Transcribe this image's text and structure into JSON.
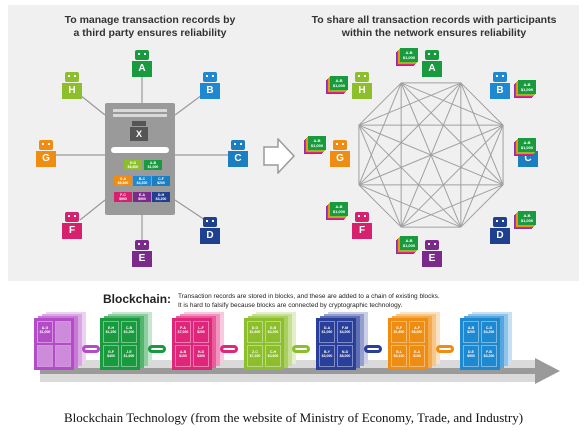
{
  "colors": {
    "A": "#1a9a3f",
    "B": "#1e88d1",
    "C": "#1a7fc1",
    "D": "#1f3f8f",
    "E": "#7a2a8a",
    "F": "#d6216f",
    "G": "#ef8c12",
    "H": "#8cbf2b",
    "bg": "#f0f0f0",
    "arrow": "#9a9a9a",
    "strip": "#f5d9e8"
  },
  "left": {
    "heading": "To manage transaction records by\na third party ensures reliability",
    "center_label": "X",
    "nodes": [
      "A",
      "B",
      "C",
      "D",
      "E",
      "F",
      "G",
      "H"
    ],
    "cells": [
      {
        "pair": "H-D",
        "amount": "$6,800",
        "color": "#8cbf2b"
      },
      {
        "pair": "A-B",
        "amount": "$1,000",
        "color": "#1a9a3f"
      },
      {
        "pair": "G-A",
        "amount": "$5,800",
        "color": "#ef8c12"
      },
      {
        "pair": "B-C",
        "amount": "$4,200",
        "color": "#1e88d1"
      },
      {
        "pair": "C-F",
        "amount": "$200",
        "color": "#1a7fc1"
      },
      {
        "pair": "F-C",
        "amount": "$900",
        "color": "#d6216f"
      },
      {
        "pair": "E-A",
        "amount": "$900",
        "color": "#7a2a8a"
      },
      {
        "pair": "D-H",
        "amount": "$3,200",
        "color": "#1f3f8f"
      }
    ]
  },
  "right": {
    "heading": "To share all transaction records with participants\nwithin the network ensures reliability",
    "nodes": [
      "A",
      "B",
      "C",
      "D",
      "E",
      "F",
      "G",
      "H"
    ],
    "ledger_pair": "A-B",
    "ledger_amount": "$1,000"
  },
  "blockchain": {
    "title": "Blockchain:",
    "desc_1": "Transaction records are stored in blocks, and these are added to a chain of existing blocks.",
    "desc_2": "It is hard to falsify because blocks are connected by cryptographic technology.",
    "blocks": [
      {
        "color": "#b44cc8",
        "cells": [
          [
            "A-G",
            "$1,000"
          ],
          [
            "",
            ""
          ],
          [
            "",
            ""
          ],
          [
            "",
            ""
          ]
        ]
      },
      {
        "color": "#1a9a3f",
        "cells": [
          [
            "E-H",
            "$1,200"
          ],
          [
            "C-B",
            "$2,200"
          ],
          [
            "G-F",
            "$400"
          ],
          [
            "J-E",
            "$1,600"
          ]
        ]
      },
      {
        "color": "#e0267a",
        "cells": [
          [
            "F-A",
            "$7,000"
          ],
          [
            "L-F",
            "$200"
          ],
          [
            "A-B",
            "$100"
          ],
          [
            "H-D",
            "$300"
          ]
        ]
      },
      {
        "color": "#8cbf2b",
        "cells": [
          [
            "D-G",
            "$1,600"
          ],
          [
            "G-B",
            "$3,200"
          ],
          [
            "Z-C",
            "$7,200"
          ],
          [
            "C-H",
            "$4,600"
          ]
        ]
      },
      {
        "color": "#2a3f9a",
        "cells": [
          [
            "D-A",
            "$1,000"
          ],
          [
            "F-M",
            "$4,000"
          ],
          [
            "B-Y",
            "$3,000"
          ],
          [
            "N-D",
            "$8,000"
          ]
        ]
      },
      {
        "color": "#ef8c12",
        "cells": [
          [
            "G-F",
            "$1,600"
          ],
          [
            "A-F",
            "$8,800"
          ],
          [
            "B-L",
            "$3,100"
          ],
          [
            "E-A",
            "$100"
          ]
        ]
      },
      {
        "color": "#1e88d1",
        "cells": [
          [
            "A-B",
            "$200"
          ],
          [
            "C-D",
            "$4,200"
          ],
          [
            "D-E",
            "$900"
          ],
          [
            "F-B",
            "$3,200"
          ]
        ]
      }
    ]
  },
  "caption": "Blockchain Technology (from the website of Ministry of Economy, Trade, and Industry)"
}
